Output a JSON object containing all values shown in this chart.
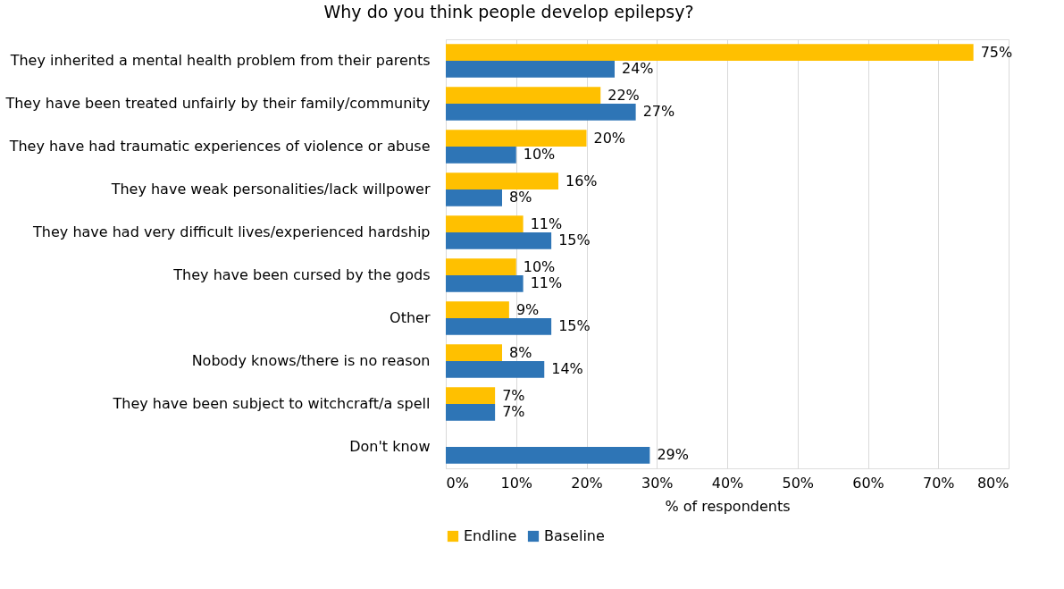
{
  "chart_data": {
    "type": "bar",
    "orientation": "horizontal",
    "title": "Why do you think people develop epilepsy?",
    "xlabel": "% of respondents",
    "categories": [
      "They inherited a mental health problem from their parents",
      "They have been treated unfairly by their family/community",
      "They have had traumatic experiences of violence or abuse",
      "They have weak personalities/lack willpower",
      "They have had very difficult lives/experienced hardship",
      "They have been cursed by the gods",
      "Other",
      "Nobody knows/there is no reason",
      "They have been subject to witchcraft/a spell",
      "Don't know"
    ],
    "series": [
      {
        "name": "Endline",
        "color": "#ffc000",
        "values": [
          75,
          22,
          20,
          16,
          11,
          10,
          9,
          8,
          7,
          null
        ],
        "value_labels": [
          "75%",
          "22%",
          "20%",
          "16%",
          "11%",
          "10%",
          "9%",
          "8%",
          "7%",
          null
        ]
      },
      {
        "name": "Baseline",
        "color": "#2e75b6",
        "values": [
          24,
          27,
          10,
          8,
          15,
          11,
          15,
          14,
          7,
          29
        ],
        "value_labels": [
          "24%",
          "27%",
          "10%",
          "8%",
          "15%",
          "11%",
          "15%",
          "14%",
          "7%",
          "29%"
        ]
      }
    ],
    "xlim": [
      0,
      80
    ],
    "xticks": [
      {
        "value": 0,
        "label": "0%"
      },
      {
        "value": 10,
        "label": "10%"
      },
      {
        "value": 20,
        "label": "20%"
      },
      {
        "value": 30,
        "label": "30%"
      },
      {
        "value": 40,
        "label": "40%"
      },
      {
        "value": 50,
        "label": "50%"
      },
      {
        "value": 60,
        "label": "60%"
      },
      {
        "value": 70,
        "label": "70%"
      },
      {
        "value": 80,
        "label": "80%"
      }
    ],
    "grid": "x",
    "legend": "bottom"
  }
}
